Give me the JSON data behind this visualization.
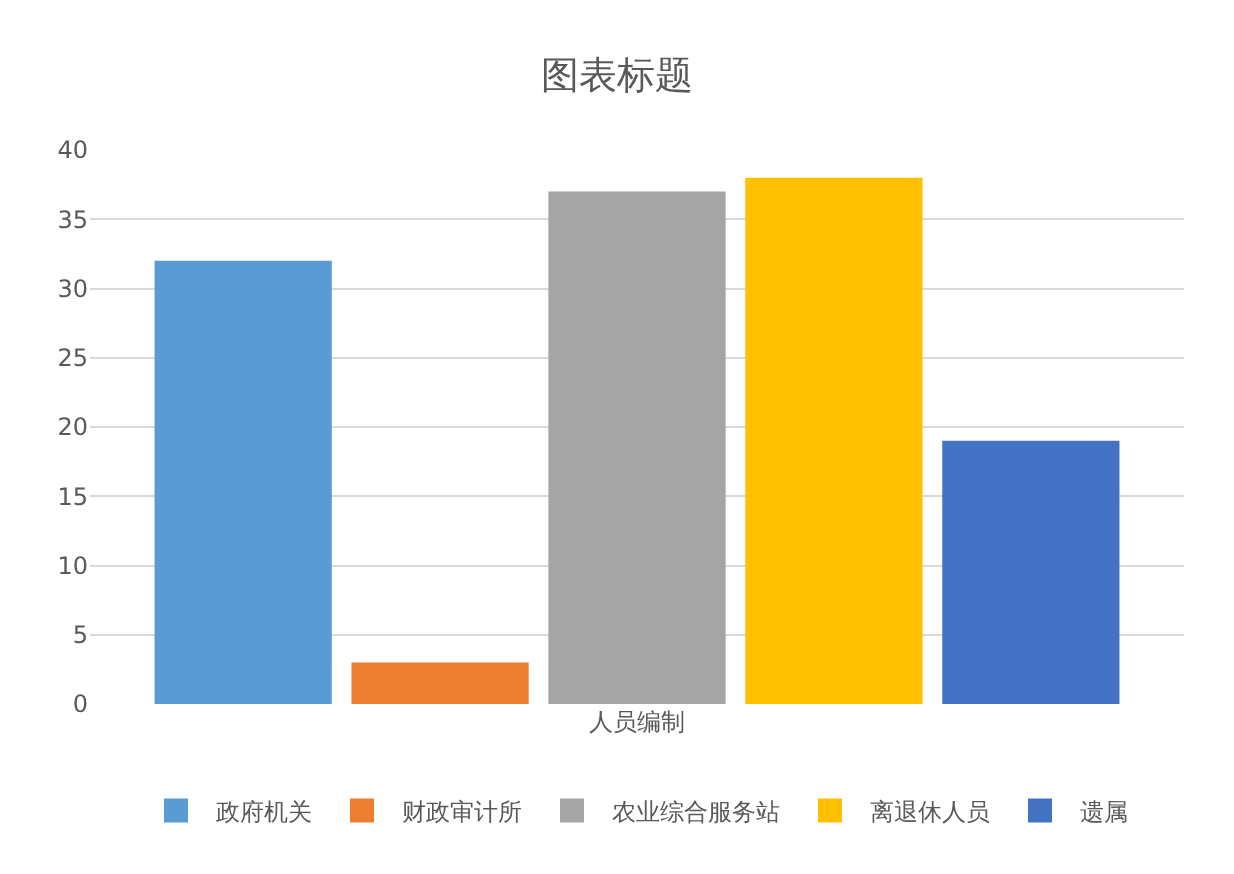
{
  "chart_data": {
    "type": "bar",
    "title": "图表标题",
    "categories": [
      "人员编制"
    ],
    "series": [
      {
        "name": "政府机关",
        "color": "#5b9bd5",
        "values": [
          32
        ]
      },
      {
        "name": "财政审计所",
        "color": "#ed7d31",
        "values": [
          3
        ]
      },
      {
        "name": "农业综合服务站",
        "color": "#a5a5a5",
        "values": [
          37
        ]
      },
      {
        "name": "离退休人员",
        "color": "#ffc000",
        "values": [
          38
        ]
      },
      {
        "name": "遗属",
        "color": "#4472c4",
        "values": [
          19
        ]
      }
    ],
    "ylim": [
      0,
      40
    ],
    "yticks": [
      0,
      5,
      10,
      15,
      20,
      25,
      30,
      35,
      40
    ],
    "grid": "y",
    "legend": "bottom"
  }
}
